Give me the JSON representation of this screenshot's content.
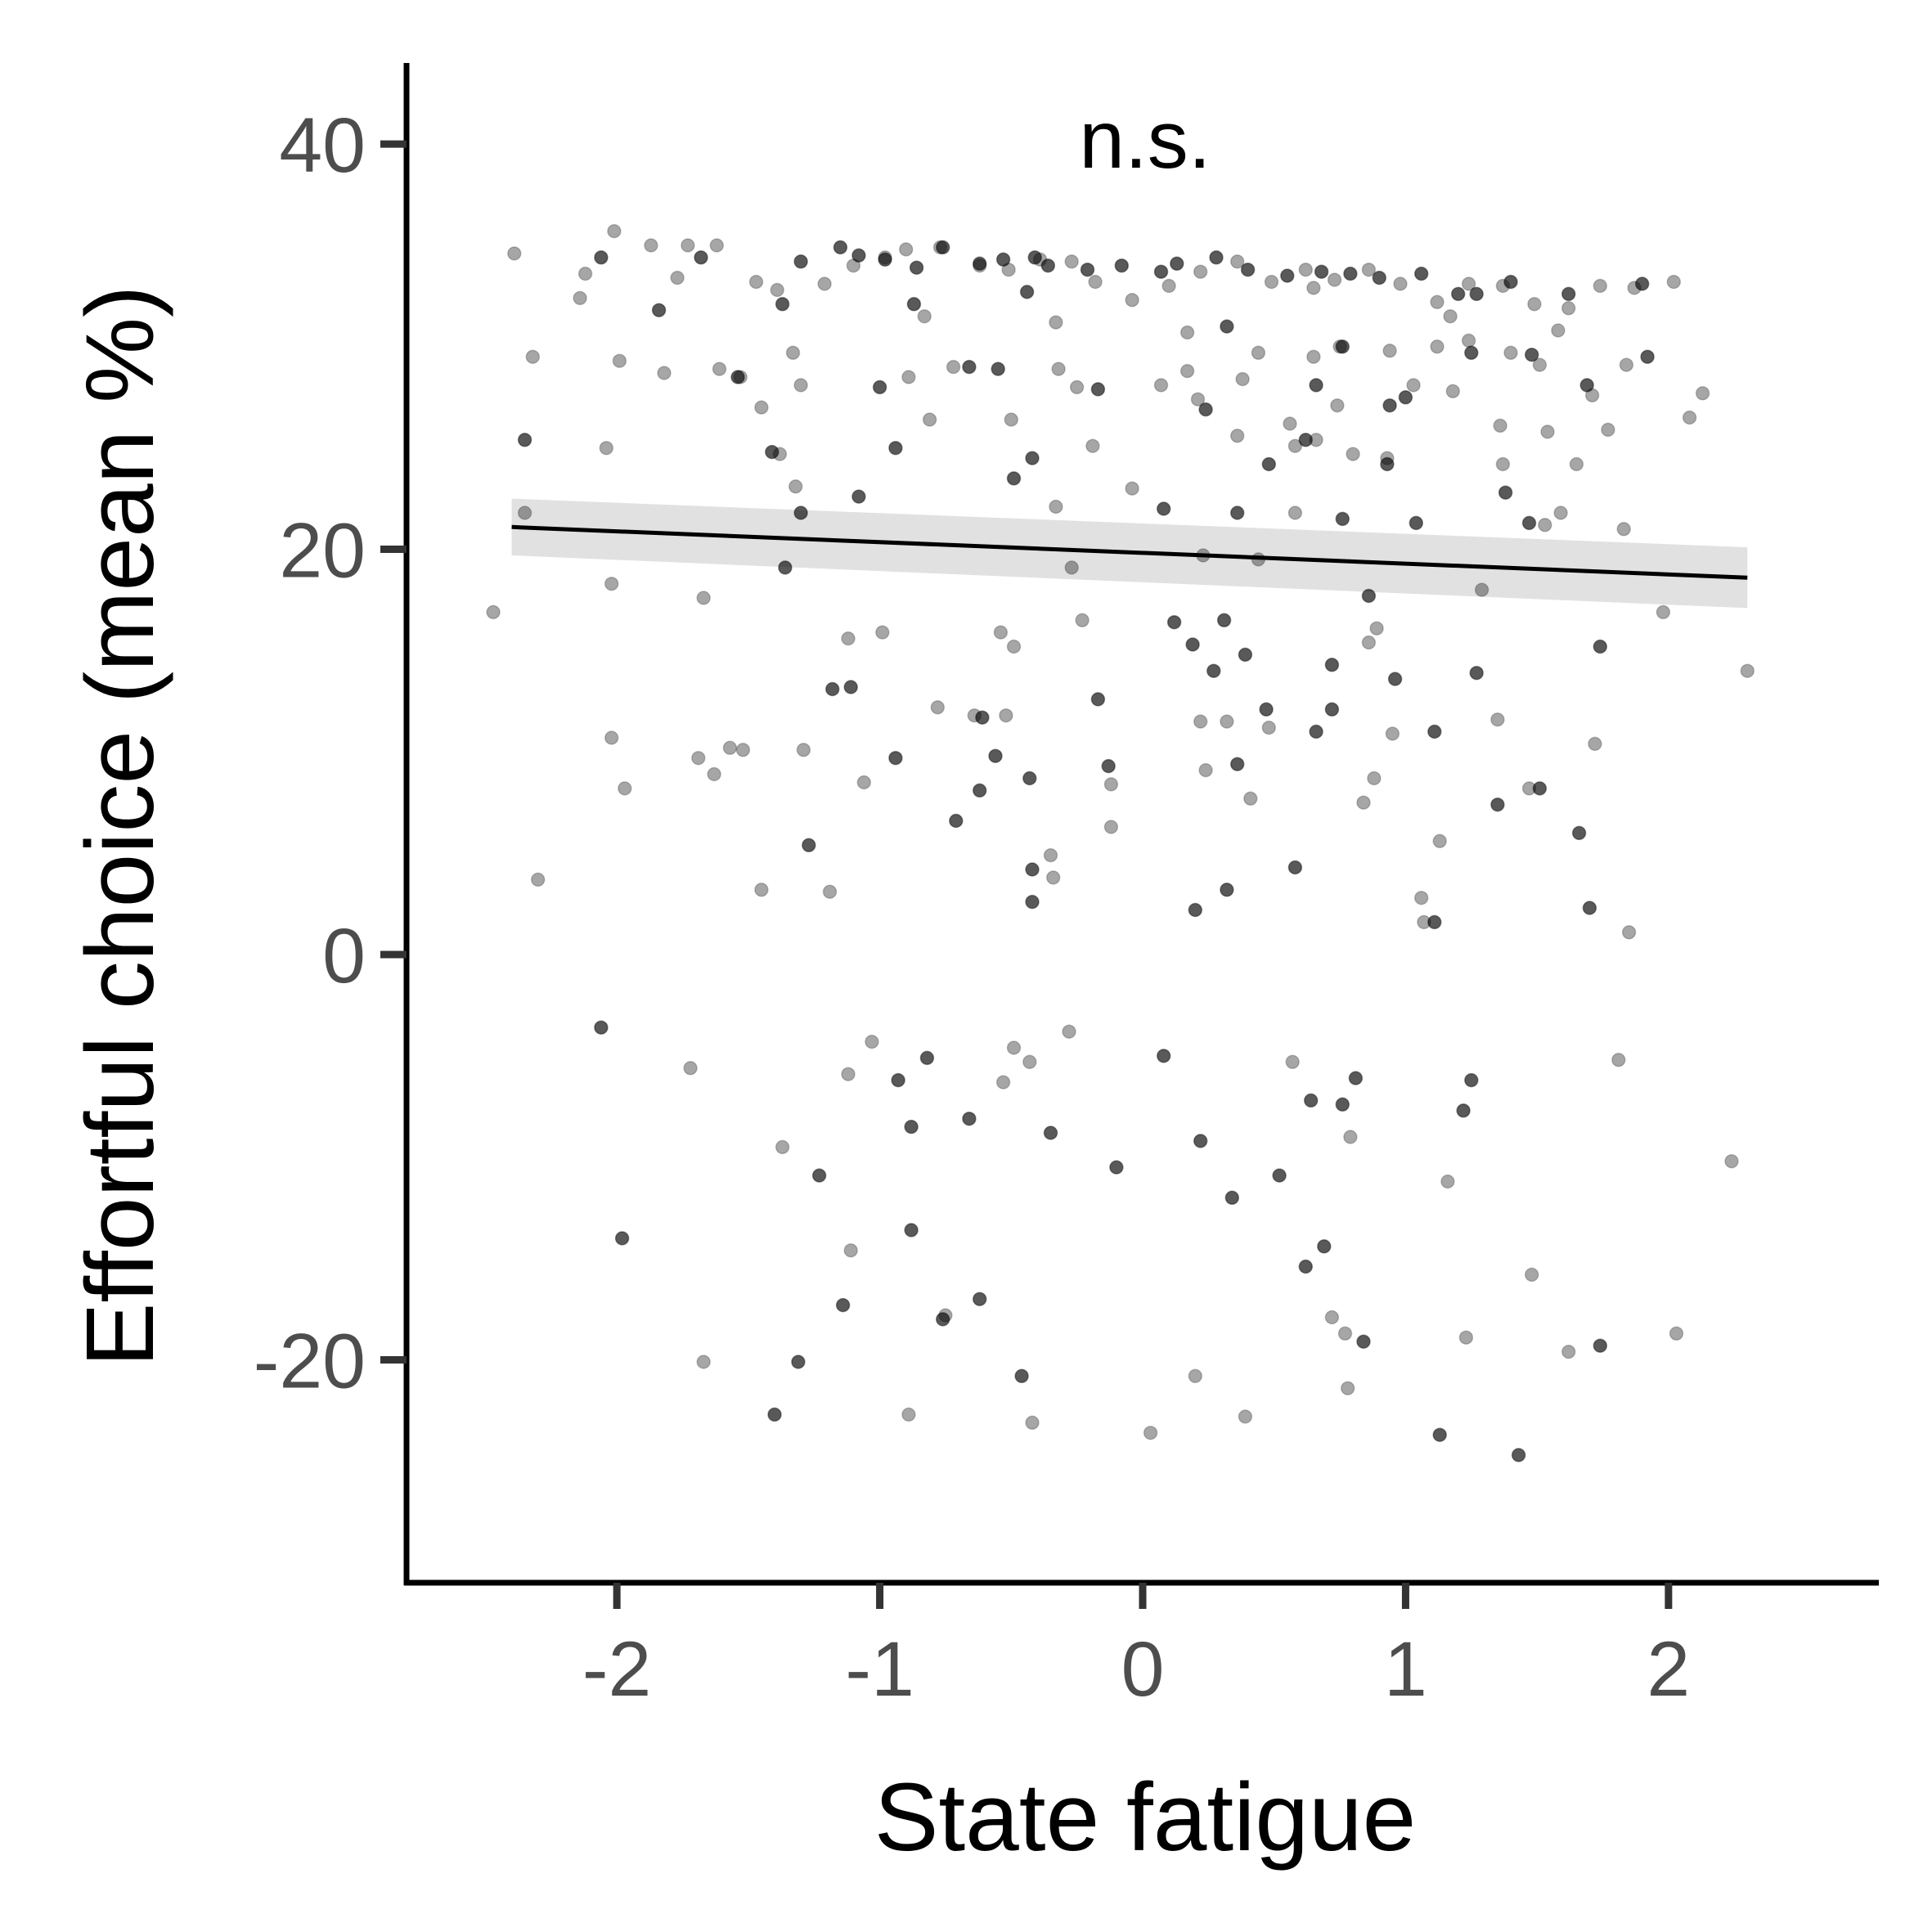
{
  "chart_data": {
    "type": "scatter",
    "xlabel": "State fatigue",
    "ylabel": "Effortful choice (mean %)",
    "annotation": "n.s.",
    "xlim": [
      -2.8,
      2.8
    ],
    "ylim": [
      -31,
      44
    ],
    "xticks": [
      -2,
      -1,
      0,
      1,
      2
    ],
    "yticks": [
      -20,
      0,
      20,
      40
    ],
    "grid": false,
    "legend": "none",
    "colors": {
      "points": "#000000",
      "fit_line": "#000000",
      "ribbon": "#d9d9d9",
      "axis": "#000000",
      "tick_label": "#4d4d4d"
    },
    "fit": {
      "x": [
        -2.4,
        2.3
      ],
      "y": [
        21.1,
        18.6
      ],
      "ci_lower": [
        19.7,
        17.1
      ],
      "ci_upper": [
        22.5,
        20.1
      ]
    },
    "series": [
      {
        "alpha": 0.35,
        "points": [
          [
            -2.39,
            34.6
          ],
          [
            -2.12,
            33.6
          ],
          [
            -2.01,
            35.7
          ],
          [
            -1.87,
            35.0
          ],
          [
            -1.73,
            35.0
          ],
          [
            -1.62,
            35.0
          ],
          [
            -1.47,
            33.2
          ],
          [
            -1.33,
            29.7
          ],
          [
            -1.21,
            33.1
          ],
          [
            -1.1,
            34.0
          ],
          [
            -0.98,
            34.4
          ],
          [
            -0.9,
            34.8
          ],
          [
            -0.77,
            34.9
          ],
          [
            -0.62,
            34.0
          ],
          [
            -0.51,
            33.8
          ],
          [
            -0.39,
            34.3
          ],
          [
            -0.27,
            34.2
          ],
          [
            -0.18,
            33.2
          ],
          [
            -0.04,
            32.3
          ],
          [
            0.1,
            33.0
          ],
          [
            0.22,
            33.7
          ],
          [
            0.36,
            34.2
          ],
          [
            0.49,
            33.2
          ],
          [
            0.62,
            33.8
          ],
          [
            0.73,
            33.3
          ],
          [
            0.86,
            33.8
          ],
          [
            0.98,
            33.1
          ],
          [
            1.12,
            32.2
          ],
          [
            1.24,
            33.1
          ],
          [
            1.37,
            33.0
          ],
          [
            1.49,
            32.1
          ],
          [
            1.62,
            31.9
          ],
          [
            1.74,
            33.0
          ],
          [
            1.87,
            32.9
          ],
          [
            2.02,
            33.2
          ],
          [
            -2.14,
            32.4
          ],
          [
            -1.77,
            33.4
          ],
          [
            -1.39,
            32.8
          ],
          [
            -0.83,
            31.5
          ],
          [
            -0.33,
            31.2
          ],
          [
            0.17,
            30.7
          ],
          [
            0.65,
            32.9
          ],
          [
            1.17,
            31.5
          ],
          [
            1.58,
            30.8
          ],
          [
            -0.72,
            29.0
          ],
          [
            -0.32,
            28.9
          ],
          [
            0.17,
            28.8
          ],
          [
            0.44,
            29.7
          ],
          [
            0.65,
            29.5
          ],
          [
            0.75,
            30.0
          ],
          [
            0.94,
            29.8
          ],
          [
            1.12,
            30.0
          ],
          [
            1.24,
            30.3
          ],
          [
            1.4,
            29.7
          ],
          [
            1.51,
            29.1
          ],
          [
            -1.99,
            29.3
          ],
          [
            -1.82,
            28.7
          ],
          [
            -1.61,
            28.9
          ],
          [
            -2.32,
            29.5
          ],
          [
            -1.45,
            27.0
          ],
          [
            -1.3,
            28.1
          ],
          [
            -0.89,
            28.5
          ],
          [
            -0.5,
            26.4
          ],
          [
            -0.25,
            28.0
          ],
          [
            0.07,
            28.1
          ],
          [
            0.38,
            28.4
          ],
          [
            0.56,
            26.2
          ],
          [
            0.66,
            25.4
          ],
          [
            0.74,
            27.1
          ],
          [
            1.03,
            28.1
          ],
          [
            1.18,
            27.8
          ],
          [
            1.36,
            26.1
          ],
          [
            1.54,
            25.8
          ],
          [
            1.71,
            27.6
          ],
          [
            1.84,
            29.1
          ],
          [
            2.13,
            27.7
          ],
          [
            2.08,
            26.5
          ],
          [
            -1.53,
            28.5
          ],
          [
            -1.38,
            24.7
          ],
          [
            -1.32,
            23.1
          ],
          [
            -0.81,
            26.4
          ],
          [
            -0.19,
            25.1
          ],
          [
            0.21,
            27.4
          ],
          [
            0.36,
            25.6
          ],
          [
            0.58,
            25.1
          ],
          [
            1.37,
            24.2
          ],
          [
            1.65,
            24.2
          ],
          [
            1.77,
            25.9
          ],
          [
            0.93,
            24.5
          ],
          [
            0.8,
            24.7
          ],
          [
            -2.04,
            25.0
          ],
          [
            -2.35,
            21.8
          ],
          [
            -2.02,
            18.3
          ],
          [
            -1.67,
            17.6
          ],
          [
            -0.78,
            12.2
          ],
          [
            -0.49,
            15.2
          ],
          [
            -0.33,
            22.1
          ],
          [
            -0.04,
            23.0
          ],
          [
            -0.23,
            16.5
          ],
          [
            0.23,
            19.7
          ],
          [
            0.44,
            19.5
          ],
          [
            0.58,
            21.8
          ],
          [
            0.86,
            15.4
          ],
          [
            0.89,
            16.1
          ],
          [
            1.29,
            18.0
          ],
          [
            1.53,
            21.2
          ],
          [
            1.59,
            21.8
          ],
          [
            1.83,
            21.0
          ],
          [
            1.98,
            16.9
          ],
          [
            2.3,
            14.0
          ],
          [
            -2.47,
            16.9
          ],
          [
            -2.02,
            10.7
          ],
          [
            -1.97,
            8.2
          ],
          [
            -1.69,
            9.7
          ],
          [
            -1.63,
            8.9
          ],
          [
            -1.57,
            10.2
          ],
          [
            -1.52,
            10.1
          ],
          [
            -1.29,
            10.1
          ],
          [
            -1.12,
            15.6
          ],
          [
            -1.06,
            8.5
          ],
          [
            -0.99,
            15.9
          ],
          [
            -0.64,
            11.8
          ],
          [
            -0.54,
            15.9
          ],
          [
            -0.52,
            11.8
          ],
          [
            -0.35,
            4.9
          ],
          [
            -0.34,
            3.8
          ],
          [
            -0.27,
            19.1
          ],
          [
            -0.12,
            8.4
          ],
          [
            -0.12,
            6.3
          ],
          [
            0.24,
            9.1
          ],
          [
            0.22,
            11.5
          ],
          [
            0.32,
            11.5
          ],
          [
            0.41,
            7.7
          ],
          [
            0.48,
            11.2
          ],
          [
            0.84,
            7.5
          ],
          [
            0.88,
            8.7
          ],
          [
            0.95,
            10.9
          ],
          [
            1.06,
            2.8
          ],
          [
            1.13,
            5.6
          ],
          [
            1.35,
            11.6
          ],
          [
            1.47,
            8.2
          ],
          [
            1.72,
            10.4
          ],
          [
            1.85,
            1.1
          ],
          [
            -2.3,
            3.7
          ],
          [
            -1.45,
            3.2
          ],
          [
            -1.19,
            3.1
          ],
          [
            1.07,
            1.6
          ],
          [
            -1.72,
            -5.6
          ],
          [
            -1.37,
            -9.5
          ],
          [
            -1.12,
            -5.9
          ],
          [
            -1.03,
            -4.3
          ],
          [
            -0.89,
            -22.7
          ],
          [
            -0.75,
            -17.8
          ],
          [
            -0.53,
            -6.3
          ],
          [
            -0.49,
            -4.6
          ],
          [
            -0.43,
            -5.3
          ],
          [
            -0.28,
            -3.8
          ],
          [
            -0.42,
            -23.1
          ],
          [
            0.03,
            -23.6
          ],
          [
            0.2,
            -20.8
          ],
          [
            0.39,
            -22.8
          ],
          [
            0.57,
            -5.3
          ],
          [
            0.72,
            -17.9
          ],
          [
            0.77,
            -18.7
          ],
          [
            0.78,
            -21.4
          ],
          [
            0.79,
            -9.0
          ],
          [
            1.16,
            -11.2
          ],
          [
            1.23,
            -18.9
          ],
          [
            1.48,
            -15.8
          ],
          [
            1.62,
            -19.6
          ],
          [
            1.81,
            -5.2
          ],
          [
            2.03,
            -18.7
          ],
          [
            2.24,
            -10.2
          ],
          [
            -1.67,
            -20.1
          ],
          [
            -1.11,
            -14.6
          ]
        ]
      },
      {
        "alpha": 0.65,
        "points": [
          [
            -2.06,
            34.4
          ],
          [
            -1.68,
            34.4
          ],
          [
            -1.3,
            34.2
          ],
          [
            -1.15,
            34.9
          ],
          [
            -1.08,
            34.5
          ],
          [
            -0.98,
            34.3
          ],
          [
            -0.86,
            33.9
          ],
          [
            -0.76,
            34.9
          ],
          [
            -0.62,
            34.1
          ],
          [
            -0.53,
            34.3
          ],
          [
            -0.41,
            34.4
          ],
          [
            -0.36,
            34.0
          ],
          [
            -0.21,
            33.8
          ],
          [
            -0.08,
            34.0
          ],
          [
            0.07,
            33.7
          ],
          [
            0.13,
            34.1
          ],
          [
            0.28,
            34.4
          ],
          [
            0.4,
            33.8
          ],
          [
            0.55,
            33.5
          ],
          [
            0.68,
            33.7
          ],
          [
            0.79,
            33.6
          ],
          [
            0.9,
            33.4
          ],
          [
            1.06,
            33.6
          ],
          [
            1.27,
            32.6
          ],
          [
            1.4,
            33.2
          ],
          [
            1.62,
            32.6
          ],
          [
            1.9,
            33.1
          ],
          [
            -1.84,
            31.8
          ],
          [
            -1.37,
            32.1
          ],
          [
            -0.87,
            32.1
          ],
          [
            -0.44,
            32.7
          ],
          [
            0.32,
            31.0
          ],
          [
            0.76,
            30.0
          ],
          [
            1.2,
            32.6
          ],
          [
            1.48,
            29.6
          ],
          [
            1.92,
            29.5
          ],
          [
            -1.54,
            28.5
          ],
          [
            -1.0,
            28.0
          ],
          [
            -0.55,
            28.9
          ],
          [
            -0.17,
            27.9
          ],
          [
            0.24,
            26.9
          ],
          [
            0.66,
            28.1
          ],
          [
            0.94,
            27.1
          ],
          [
            1.25,
            29.7
          ],
          [
            1.69,
            28.1
          ],
          [
            -0.94,
            25.0
          ],
          [
            -0.42,
            24.5
          ],
          [
            0.62,
            25.4
          ],
          [
            1.0,
            27.5
          ],
          [
            1.38,
            22.8
          ],
          [
            -2.35,
            25.4
          ],
          [
            -1.41,
            24.8
          ],
          [
            -1.3,
            21.8
          ],
          [
            -1.08,
            22.6
          ],
          [
            -0.66,
            29.0
          ],
          [
            -0.49,
            23.5
          ],
          [
            0.08,
            22.0
          ],
          [
            0.36,
            21.8
          ],
          [
            0.48,
            24.2
          ],
          [
            0.76,
            21.5
          ],
          [
            0.93,
            24.2
          ],
          [
            1.04,
            21.3
          ],
          [
            1.47,
            21.3
          ],
          [
            -1.36,
            19.1
          ],
          [
            -1.18,
            13.1
          ],
          [
            -1.11,
            13.2
          ],
          [
            -0.94,
            9.7
          ],
          [
            -0.61,
            11.7
          ],
          [
            -0.56,
            9.8
          ],
          [
            -0.62,
            8.1
          ],
          [
            -0.43,
            8.7
          ],
          [
            -0.17,
            12.6
          ],
          [
            -0.13,
            9.3
          ],
          [
            0.12,
            16.4
          ],
          [
            0.19,
            15.3
          ],
          [
            0.31,
            16.5
          ],
          [
            0.39,
            14.8
          ],
          [
            0.27,
            14.0
          ],
          [
            0.36,
            9.4
          ],
          [
            0.47,
            12.1
          ],
          [
            0.66,
            11.0
          ],
          [
            0.72,
            14.3
          ],
          [
            0.72,
            12.1
          ],
          [
            0.86,
            17.7
          ],
          [
            0.96,
            13.6
          ],
          [
            1.11,
            11.0
          ],
          [
            1.27,
            13.9
          ],
          [
            1.35,
            7.4
          ],
          [
            1.51,
            8.2
          ],
          [
            1.66,
            6.0
          ],
          [
            1.74,
            15.2
          ],
          [
            -1.27,
            5.4
          ],
          [
            -0.71,
            6.6
          ],
          [
            -0.42,
            4.2
          ],
          [
            0.2,
            2.2
          ],
          [
            0.32,
            3.2
          ],
          [
            0.58,
            4.3
          ],
          [
            1.11,
            1.6
          ],
          [
            1.7,
            2.3
          ],
          [
            -0.42,
            2.6
          ],
          [
            -2.06,
            -3.6
          ],
          [
            -0.93,
            -6.2
          ],
          [
            -0.82,
            -5.1
          ],
          [
            -0.88,
            -8.5
          ],
          [
            -0.66,
            -8.1
          ],
          [
            -0.35,
            -8.8
          ],
          [
            -0.1,
            -10.5
          ],
          [
            0.08,
            -5.0
          ],
          [
            0.22,
            -9.2
          ],
          [
            0.34,
            -12.0
          ],
          [
            0.52,
            -10.9
          ],
          [
            0.62,
            -15.4
          ],
          [
            0.64,
            -7.2
          ],
          [
            0.69,
            -14.4
          ],
          [
            0.76,
            -7.4
          ],
          [
            0.81,
            -6.1
          ],
          [
            0.84,
            -19.1
          ],
          [
            1.13,
            -23.7
          ],
          [
            1.25,
            -6.2
          ],
          [
            1.22,
            -7.7
          ],
          [
            1.43,
            -24.7
          ],
          [
            1.74,
            -19.3
          ],
          [
            -1.23,
            -10.9
          ],
          [
            -1.14,
            -17.3
          ],
          [
            -1.31,
            -20.1
          ],
          [
            -1.4,
            -22.7
          ],
          [
            -0.88,
            -13.6
          ],
          [
            -0.76,
            -18.0
          ],
          [
            -0.62,
            -17.0
          ],
          [
            -0.46,
            -20.8
          ],
          [
            -1.98,
            -14.0
          ]
        ]
      }
    ]
  }
}
